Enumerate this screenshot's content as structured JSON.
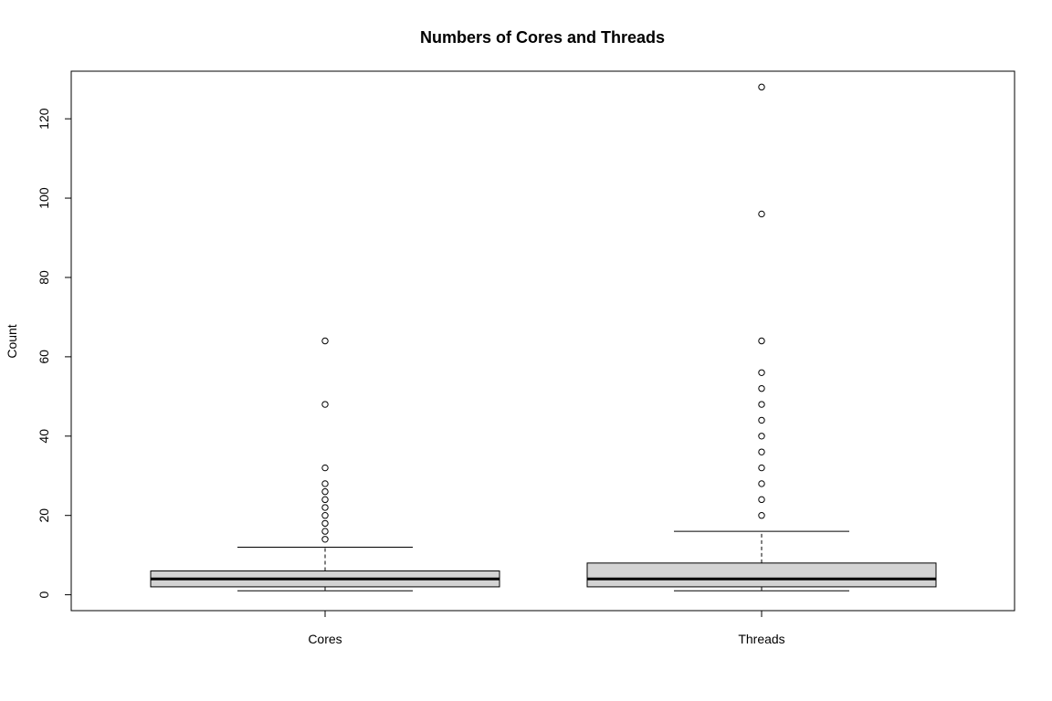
{
  "chart_data": {
    "type": "boxplot",
    "title": "Numbers of Cores and Threads",
    "xlabel": "",
    "ylabel": "Count",
    "ylim": [
      -4,
      132
    ],
    "yticks": [
      0,
      20,
      40,
      60,
      80,
      100,
      120
    ],
    "grid": false,
    "legend": "none",
    "box_fill": "#d3d3d3",
    "categories": [
      "Cores",
      "Threads"
    ],
    "boxes": [
      {
        "category": "Cores",
        "whisker_low": 1,
        "q1": 2,
        "median": 4,
        "q3": 6,
        "whisker_high": 12,
        "outliers": [
          14,
          16,
          18,
          20,
          22,
          24,
          26,
          28,
          32,
          48,
          64
        ]
      },
      {
        "category": "Threads",
        "whisker_low": 1,
        "q1": 2,
        "median": 4,
        "q3": 8,
        "whisker_high": 16,
        "outliers": [
          20,
          24,
          28,
          32,
          36,
          40,
          44,
          48,
          52,
          56,
          64,
          96,
          128
        ]
      }
    ]
  }
}
